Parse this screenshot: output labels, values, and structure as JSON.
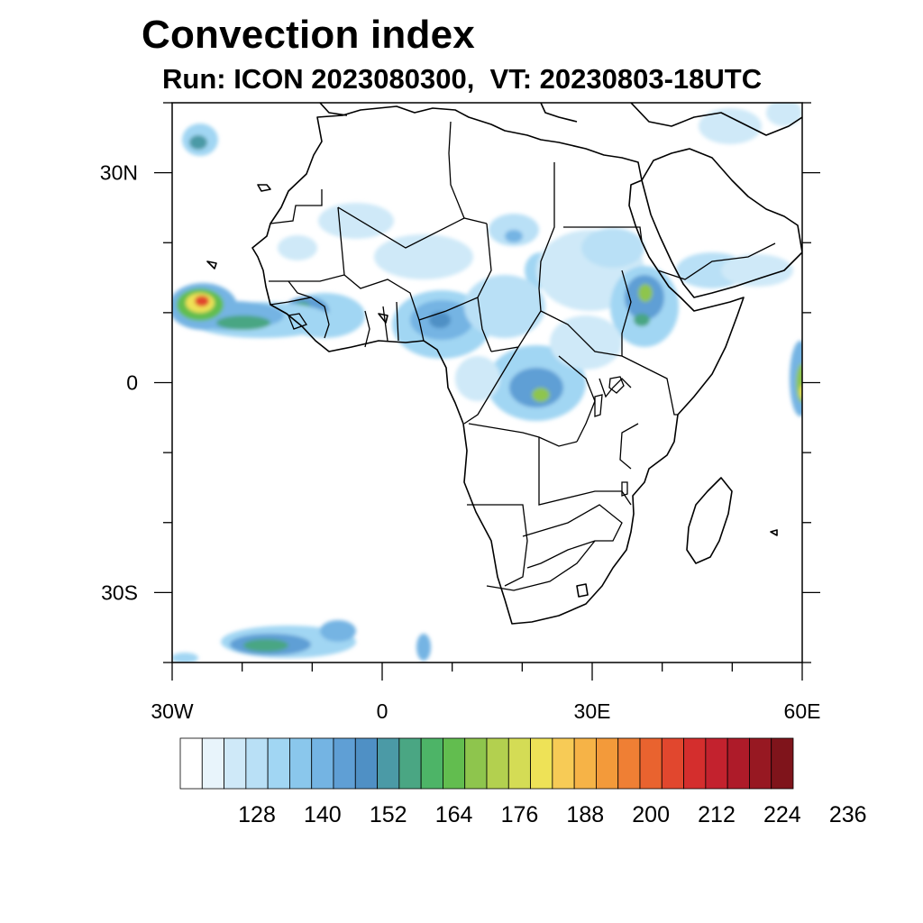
{
  "title": "Convection index",
  "subtitle": "Run: ICON 2023080300,  VT: 20230803-18UTC",
  "map": {
    "projection": "cylindrical-equidistant",
    "lon_range": [
      -30,
      60
    ],
    "lat_range": [
      -40,
      40
    ],
    "lat_ticks": [
      {
        "value": 30,
        "label": "30N"
      },
      {
        "value": 0,
        "label": "0"
      },
      {
        "value": -30,
        "label": "30S"
      }
    ],
    "lon_ticks": [
      {
        "value": -30,
        "label": "30W"
      },
      {
        "value": 0,
        "label": "0"
      },
      {
        "value": 30,
        "label": "30E"
      },
      {
        "value": 60,
        "label": "60E"
      }
    ],
    "minor_tick_step_deg": 10,
    "coastline_color": "#000000",
    "frame_color": "#000000"
  },
  "colorbar": {
    "colors": [
      "#ffffff",
      "#e8f4fb",
      "#cfe9f8",
      "#b9e0f6",
      "#a1d6f3",
      "#8ac7ec",
      "#74b4e3",
      "#5f9fd5",
      "#4f90c5",
      "#4b9aa6",
      "#4aa683",
      "#4db467",
      "#62bd4f",
      "#8ec54d",
      "#b3d04f",
      "#d4dc55",
      "#eee257",
      "#f7cb56",
      "#f6b347",
      "#f39a3a",
      "#ef7f34",
      "#e9632f",
      "#e1472e",
      "#d42e2d",
      "#c3222e",
      "#ae1b29",
      "#971822",
      "#7f141b"
    ],
    "tick_labels": [
      "128",
      "140",
      "152",
      "164",
      "176",
      "188",
      "200",
      "212",
      "224",
      "236"
    ]
  }
}
